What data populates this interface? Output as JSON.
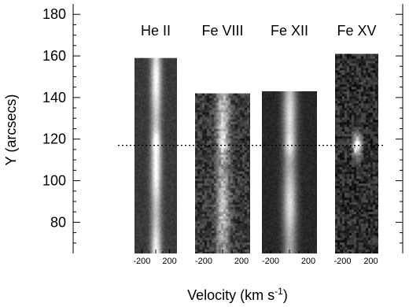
{
  "chart_data": {
    "type": "heatmap",
    "title": "",
    "xlabel_main": "Velocity (km s",
    "xlabel_sup": "-1",
    "xlabel_close": ")",
    "ylabel": "Y (arcsecs)",
    "ylim": [
      65,
      185
    ],
    "yticks": [
      {
        "value": 80,
        "label": "80"
      },
      {
        "value": 100,
        "label": "100"
      },
      {
        "value": 120,
        "label": "120"
      },
      {
        "value": 140,
        "label": "140"
      },
      {
        "value": 160,
        "label": "160"
      },
      {
        "value": 180,
        "label": "180"
      }
    ],
    "reference_line_y": 117,
    "panels": [
      {
        "name": "He II",
        "y_top": 159,
        "x_ticks": [
          {
            "value": -200,
            "label": "-200"
          },
          {
            "value": 200,
            "label": "200"
          }
        ],
        "core_velocity": 0,
        "bright_y": 119,
        "noise": 0.08,
        "core_peak": 0.78,
        "bg": 0.22
      },
      {
        "name": "Fe VIII",
        "y_top": 142,
        "x_ticks": [
          {
            "value": -200,
            "label": "-200"
          },
          {
            "value": 200,
            "label": "200"
          }
        ],
        "core_velocity": 0,
        "bright_y": 118,
        "noise": 0.28,
        "core_peak": 0.55,
        "bg": 0.22
      },
      {
        "name": "Fe XII",
        "y_top": 143,
        "x_ticks": [
          {
            "value": -200,
            "label": "-200"
          },
          {
            "value": 200,
            "label": "200"
          }
        ],
        "core_velocity": 0,
        "bright_y": 117,
        "noise": 0.07,
        "core_peak": 0.72,
        "bg": 0.15
      },
      {
        "name": "Fe XV",
        "y_top": 161,
        "x_ticks": [
          {
            "value": -200,
            "label": "-200"
          },
          {
            "value": 200,
            "label": "200"
          }
        ],
        "core_velocity": 0,
        "bright_y": 117,
        "noise": 0.3,
        "core_peak": 0.0,
        "bg": 0.18
      }
    ]
  }
}
